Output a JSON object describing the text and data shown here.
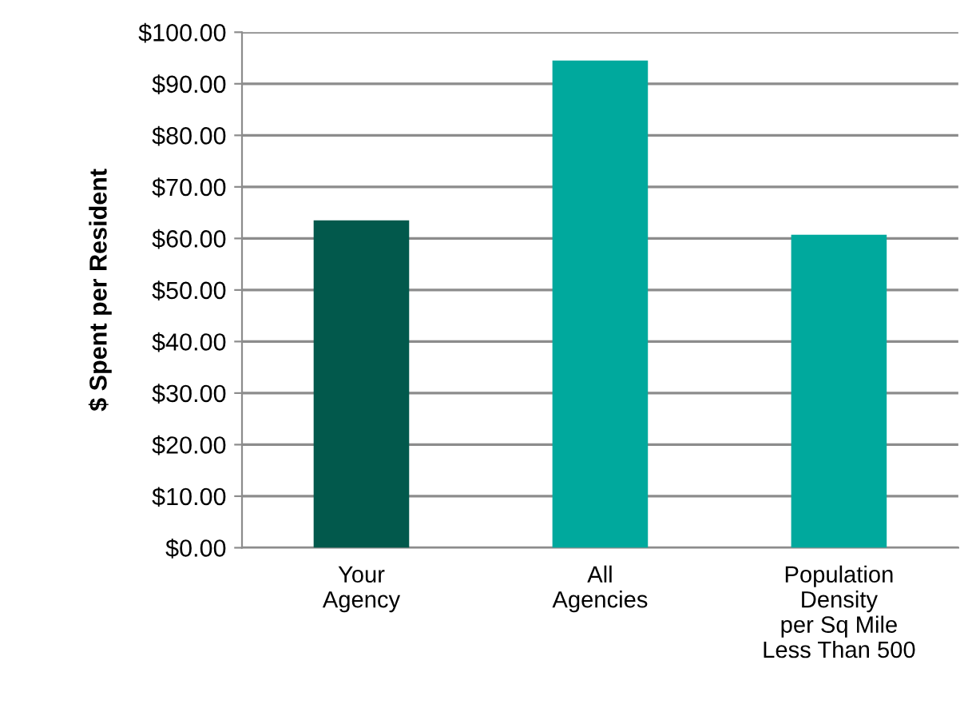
{
  "chart_data": {
    "type": "bar",
    "ylabel": "$ Spent per Resident",
    "categories": [
      "Your\nAgency",
      "All\nAgencies",
      "Population\nDensity\nper Sq Mile\nLess Than 500"
    ],
    "values": [
      63.5,
      94.5,
      60.7
    ],
    "colors": [
      "#02594c",
      "#00a99d",
      "#00a99d"
    ],
    "ylim": [
      0,
      100
    ],
    "yticks": [
      {
        "value": 0,
        "label": "$0.00"
      },
      {
        "value": 10,
        "label": "$10.00"
      },
      {
        "value": 20,
        "label": "$20.00"
      },
      {
        "value": 30,
        "label": "$30.00"
      },
      {
        "value": 40,
        "label": "$40.00"
      },
      {
        "value": 50,
        "label": "$50.00"
      },
      {
        "value": 60,
        "label": "$60.00"
      },
      {
        "value": 70,
        "label": "$70.00"
      },
      {
        "value": 80,
        "label": "$80.00"
      },
      {
        "value": 90,
        "label": "$90.00"
      },
      {
        "value": 100,
        "label": "$100.00"
      }
    ],
    "grid": "y"
  }
}
